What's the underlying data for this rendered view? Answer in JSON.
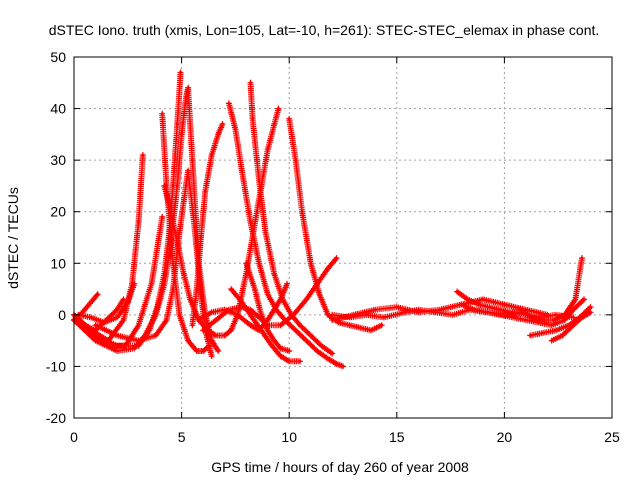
{
  "chart_data": {
    "type": "scatter",
    "title": "dSTEC Iono. truth (xmis, Lon=105, Lat=-10, h=261): STEC-STEC_elemax in phase cont.",
    "xlabel": "GPS time / hours of day 260 of year 2008",
    "ylabel": "dSTEC  / TECUs",
    "xlim": [
      0,
      25
    ],
    "ylim": [
      -20,
      50
    ],
    "xticks": [
      0,
      5,
      10,
      15,
      20,
      25
    ],
    "yticks": [
      -20,
      -10,
      0,
      10,
      20,
      30,
      40,
      50
    ],
    "grid": true,
    "legend": "none",
    "marker": "plus",
    "series_color": "#ff0000",
    "series": [
      {
        "x": [
          0.0,
          0.4,
          0.8,
          1.1
        ],
        "y": [
          -1,
          0.5,
          2.5,
          4
        ]
      },
      {
        "x": [
          0.0,
          0.5,
          1.0,
          1.5,
          2.0,
          2.3
        ],
        "y": [
          0,
          -2,
          -3,
          -1,
          1,
          3
        ]
      },
      {
        "x": [
          0.2,
          0.8,
          1.4,
          2.0,
          2.5,
          2.8
        ],
        "y": [
          0,
          -0.5,
          -1.5,
          -0.5,
          2.5,
          6
        ]
      },
      {
        "x": [
          0.0,
          0.8,
          1.6,
          2.3,
          2.7,
          3.0,
          3.2
        ],
        "y": [
          0,
          -3,
          -5,
          -1,
          6,
          18,
          31
        ]
      },
      {
        "x": [
          0.0,
          0.8,
          1.6,
          2.4,
          3.0,
          3.6,
          4.1
        ],
        "y": [
          -1,
          -4,
          -6,
          -6,
          -2,
          6,
          19
        ]
      },
      {
        "x": [
          0.0,
          1.0,
          2.0,
          3.0,
          3.5,
          3.9,
          4.2,
          4.4,
          4.6,
          4.8,
          4.95
        ],
        "y": [
          -1,
          -4,
          -6,
          -6,
          -3,
          2,
          8,
          15,
          25,
          37,
          47
        ]
      },
      {
        "x": [
          0.0,
          1.0,
          2.0,
          2.8,
          3.3,
          3.8,
          4.2,
          4.5,
          4.8,
          5.0,
          5.2,
          5.3
        ],
        "y": [
          -1,
          -5,
          -7,
          -6.5,
          -4,
          0,
          6,
          14,
          25,
          35,
          42,
          44
        ]
      },
      {
        "x": [
          4.1,
          4.3,
          4.6,
          4.9,
          5.3,
          5.7,
          6.0,
          6.3
        ],
        "y": [
          39,
          25,
          10,
          0,
          -5,
          -7,
          -7,
          -6
        ]
      },
      {
        "x": [
          1.0,
          2.0,
          3.0,
          3.8,
          4.3,
          4.6,
          4.9,
          5.3,
          5.6,
          5.9,
          6.1,
          6.4
        ],
        "y": [
          -2,
          -4,
          -5,
          -4,
          -1,
          5,
          16,
          28,
          17,
          4,
          -3,
          -8
        ]
      },
      {
        "x": [
          4.2,
          4.5,
          4.8,
          5.1,
          5.4,
          5.8,
          6.2,
          6.6,
          7.0,
          7.3,
          7.6,
          8.0,
          8.5,
          9.0,
          9.5
        ],
        "y": [
          25,
          20,
          14,
          8,
          3,
          -1,
          -3,
          -4,
          -4,
          -3,
          0,
          8,
          20,
          32,
          40
        ]
      },
      {
        "x": [
          5.3,
          5.5,
          5.8,
          6.1,
          6.4,
          6.7
        ],
        "y": [
          44,
          30,
          10,
          0,
          -5,
          -7
        ]
      },
      {
        "x": [
          5.5,
          5.7,
          5.9,
          6.1,
          6.4,
          6.7,
          6.9
        ],
        "y": [
          -2,
          5,
          15,
          24,
          31,
          35,
          37
        ]
      },
      {
        "x": [
          7.2,
          7.5,
          7.8,
          8.2,
          8.6,
          9.0,
          9.4,
          9.8,
          10.3,
          10.8,
          11.3,
          11.8,
          12.2,
          12.5
        ],
        "y": [
          41,
          36,
          28,
          18,
          10,
          4,
          1,
          -1,
          -3,
          -5,
          -7,
          -8.5,
          -9.5,
          -10
        ]
      },
      {
        "x": [
          8.2,
          8.3,
          8.6,
          8.9,
          9.3,
          9.7,
          10.1,
          10.5,
          11.0,
          11.5,
          12.0
        ],
        "y": [
          45,
          38,
          26,
          16,
          8,
          3,
          0,
          -2,
          -4,
          -6,
          -7.5
        ]
      },
      {
        "x": [
          7.3,
          7.7,
          8.2,
          8.7,
          9.2,
          9.6,
          10.0,
          10.5
        ],
        "y": [
          5,
          3,
          0,
          -3,
          -6,
          -8,
          -9,
          -9
        ]
      },
      {
        "x": [
          6.0,
          6.6,
          7.2,
          7.8,
          8.2,
          8.6,
          9.0,
          9.6,
          10.2,
          10.8,
          11.3,
          11.8,
          12.2
        ],
        "y": [
          -3,
          -1,
          1,
          1.5,
          1,
          -0.5,
          -2,
          -2,
          0,
          3,
          6,
          9,
          11
        ]
      },
      {
        "x": [
          5.8,
          6.4,
          7.0,
          7.6,
          8.2,
          8.6,
          9.0,
          9.3,
          9.6,
          9.9
        ],
        "y": [
          -1,
          0.5,
          1,
          0,
          -2,
          -3,
          -1,
          1,
          3,
          6
        ]
      },
      {
        "x": [
          8.0,
          8.4,
          8.7,
          9.0,
          9.3,
          9.6,
          10.0
        ],
        "y": [
          10,
          5,
          0,
          -3,
          -5,
          -6.5,
          -7
        ]
      },
      {
        "x": [
          10.0,
          10.3,
          10.6,
          11.0,
          11.4,
          11.8,
          12.3,
          12.8,
          13.3,
          13.8,
          14.3
        ],
        "y": [
          38,
          30,
          20,
          10,
          4,
          0,
          -1.5,
          -2,
          -2.5,
          -3,
          -2
        ]
      },
      {
        "x": [
          12.0,
          12.8,
          13.6,
          14.4,
          15.2,
          16.0,
          16.8,
          17.6,
          18.4,
          19.2,
          20.0,
          20.8,
          21.6,
          22.4,
          23.2
        ],
        "y": [
          0,
          -0.5,
          0,
          -0.5,
          0.3,
          1,
          0.5,
          0,
          1,
          0.5,
          0,
          0.3,
          -0.5,
          0,
          -0.5
        ]
      },
      {
        "x": [
          12.0,
          13.0,
          14.0,
          15.0,
          16.0,
          17.0,
          18.0,
          19.0,
          20.0,
          21.0,
          22.0
        ],
        "y": [
          -1,
          0,
          1,
          1.5,
          0.5,
          1,
          2,
          3,
          2,
          1,
          0
        ]
      },
      {
        "x": [
          17.8,
          18.3,
          18.8,
          19.3,
          19.8,
          20.3,
          20.8,
          21.3,
          21.8,
          22.3,
          22.8,
          23.3,
          23.6
        ],
        "y": [
          4.5,
          3,
          2,
          1.5,
          1,
          0.5,
          0.5,
          -0.5,
          -1,
          -1,
          0,
          3,
          11
        ]
      },
      {
        "x": [
          18.0,
          18.6,
          19.2,
          19.8,
          20.4,
          21.0,
          21.6,
          22.2,
          22.8,
          23.2,
          23.7
        ],
        "y": [
          2,
          1,
          0.5,
          0,
          -0.5,
          -1,
          -1.5,
          -2,
          -1,
          1,
          3
        ]
      },
      {
        "x": [
          21.2,
          21.8,
          22.4,
          23.0,
          23.5,
          24.0
        ],
        "y": [
          -4,
          -3.5,
          -3,
          -2,
          -0.5,
          1.5
        ]
      },
      {
        "x": [
          22.2,
          22.7,
          23.2,
          23.6,
          24.0
        ],
        "y": [
          -5,
          -4,
          -2,
          -0.5,
          0.5
        ]
      }
    ]
  }
}
